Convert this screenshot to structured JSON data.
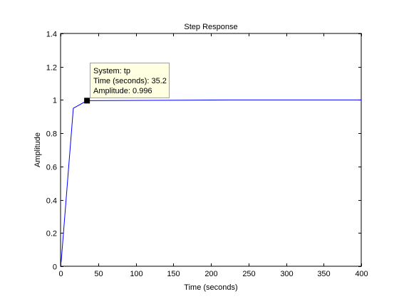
{
  "chart_data": {
    "type": "line",
    "title": "Step Response",
    "xlabel": "Time (seconds)",
    "ylabel": "Amplitude",
    "xlim": [
      0,
      400
    ],
    "ylim": [
      0,
      1.4
    ],
    "xticks": [
      0,
      50,
      100,
      150,
      200,
      250,
      300,
      350,
      400
    ],
    "yticks": [
      0,
      0.2,
      0.4,
      0.6,
      0.8,
      1,
      1.2,
      1.4
    ],
    "xtick_labels": [
      "0",
      "50",
      "100",
      "150",
      "200",
      "250",
      "300",
      "350",
      "400"
    ],
    "ytick_labels": [
      "0",
      "0.2",
      "0.4",
      "0.6",
      "0.8",
      "1",
      "1.2",
      "1.4"
    ],
    "grid": false,
    "series": [
      {
        "color": "#0000ff",
        "x": [
          0,
          1,
          17,
          35.2,
          222,
          400
        ],
        "y": [
          0,
          0.04,
          0.95,
          0.996,
          1.0,
          1.0
        ]
      }
    ],
    "datatip": {
      "x": 35.2,
      "y": 0.996,
      "lines": [
        "System: tp",
        "Time (seconds): 35.2",
        "Amplitude: 0.996"
      ],
      "background": "#ffffe1"
    }
  }
}
